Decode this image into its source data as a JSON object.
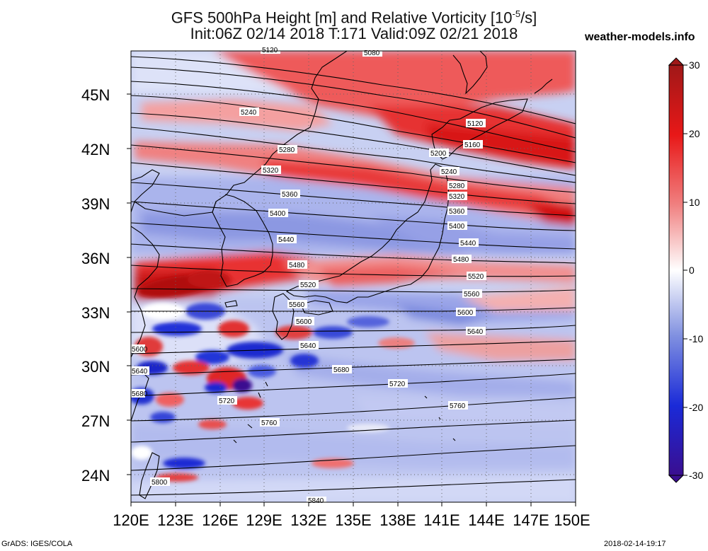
{
  "header": {
    "title_line1_prefix": "GFS 500hPa Height [m] and Relative Vorticity [10",
    "title_line1_exp": "-5",
    "title_line1_suffix": "/s]",
    "title_line2": "Init:06Z 02/14 2018 T:171 Valid:09Z 02/21 2018",
    "credit": "weather-models.info"
  },
  "axes": {
    "lon_labels": [
      "120E",
      "123E",
      "126E",
      "129E",
      "132E",
      "135E",
      "138E",
      "141E",
      "144E",
      "147E",
      "150E"
    ],
    "lat_labels": [
      "45N",
      "42N",
      "39N",
      "36N",
      "33N",
      "30N",
      "27N",
      "24N"
    ],
    "lon_range": [
      120,
      150
    ],
    "lat_range": [
      22.5,
      47.5
    ]
  },
  "colorbar": {
    "ticks": [
      "30",
      "20",
      "10",
      "0",
      "-10",
      "-20",
      "-30"
    ],
    "range": [
      -30,
      30
    ],
    "colors": {
      "max": "#a01818",
      "strong_pos": "#e81818",
      "pos": "#f08080",
      "neutral": "#ffffff",
      "neg": "#8090e0",
      "strong_neg": "#1a2ad8",
      "min": "#3a0e90"
    }
  },
  "contours": {
    "labels": [
      "5080",
      "5120",
      "5160",
      "5200",
      "5240",
      "5280",
      "5320",
      "5360",
      "5400",
      "5440",
      "5480",
      "5520",
      "5560",
      "5600",
      "5640",
      "5680",
      "5720",
      "5760",
      "5800"
    ],
    "edge_labels": [
      "5120",
      "5600",
      "5640",
      "5680",
      "5840"
    ]
  },
  "footer": {
    "left": "GrADS: IGES/COLA",
    "right": "2018-02-14-19:17"
  }
}
